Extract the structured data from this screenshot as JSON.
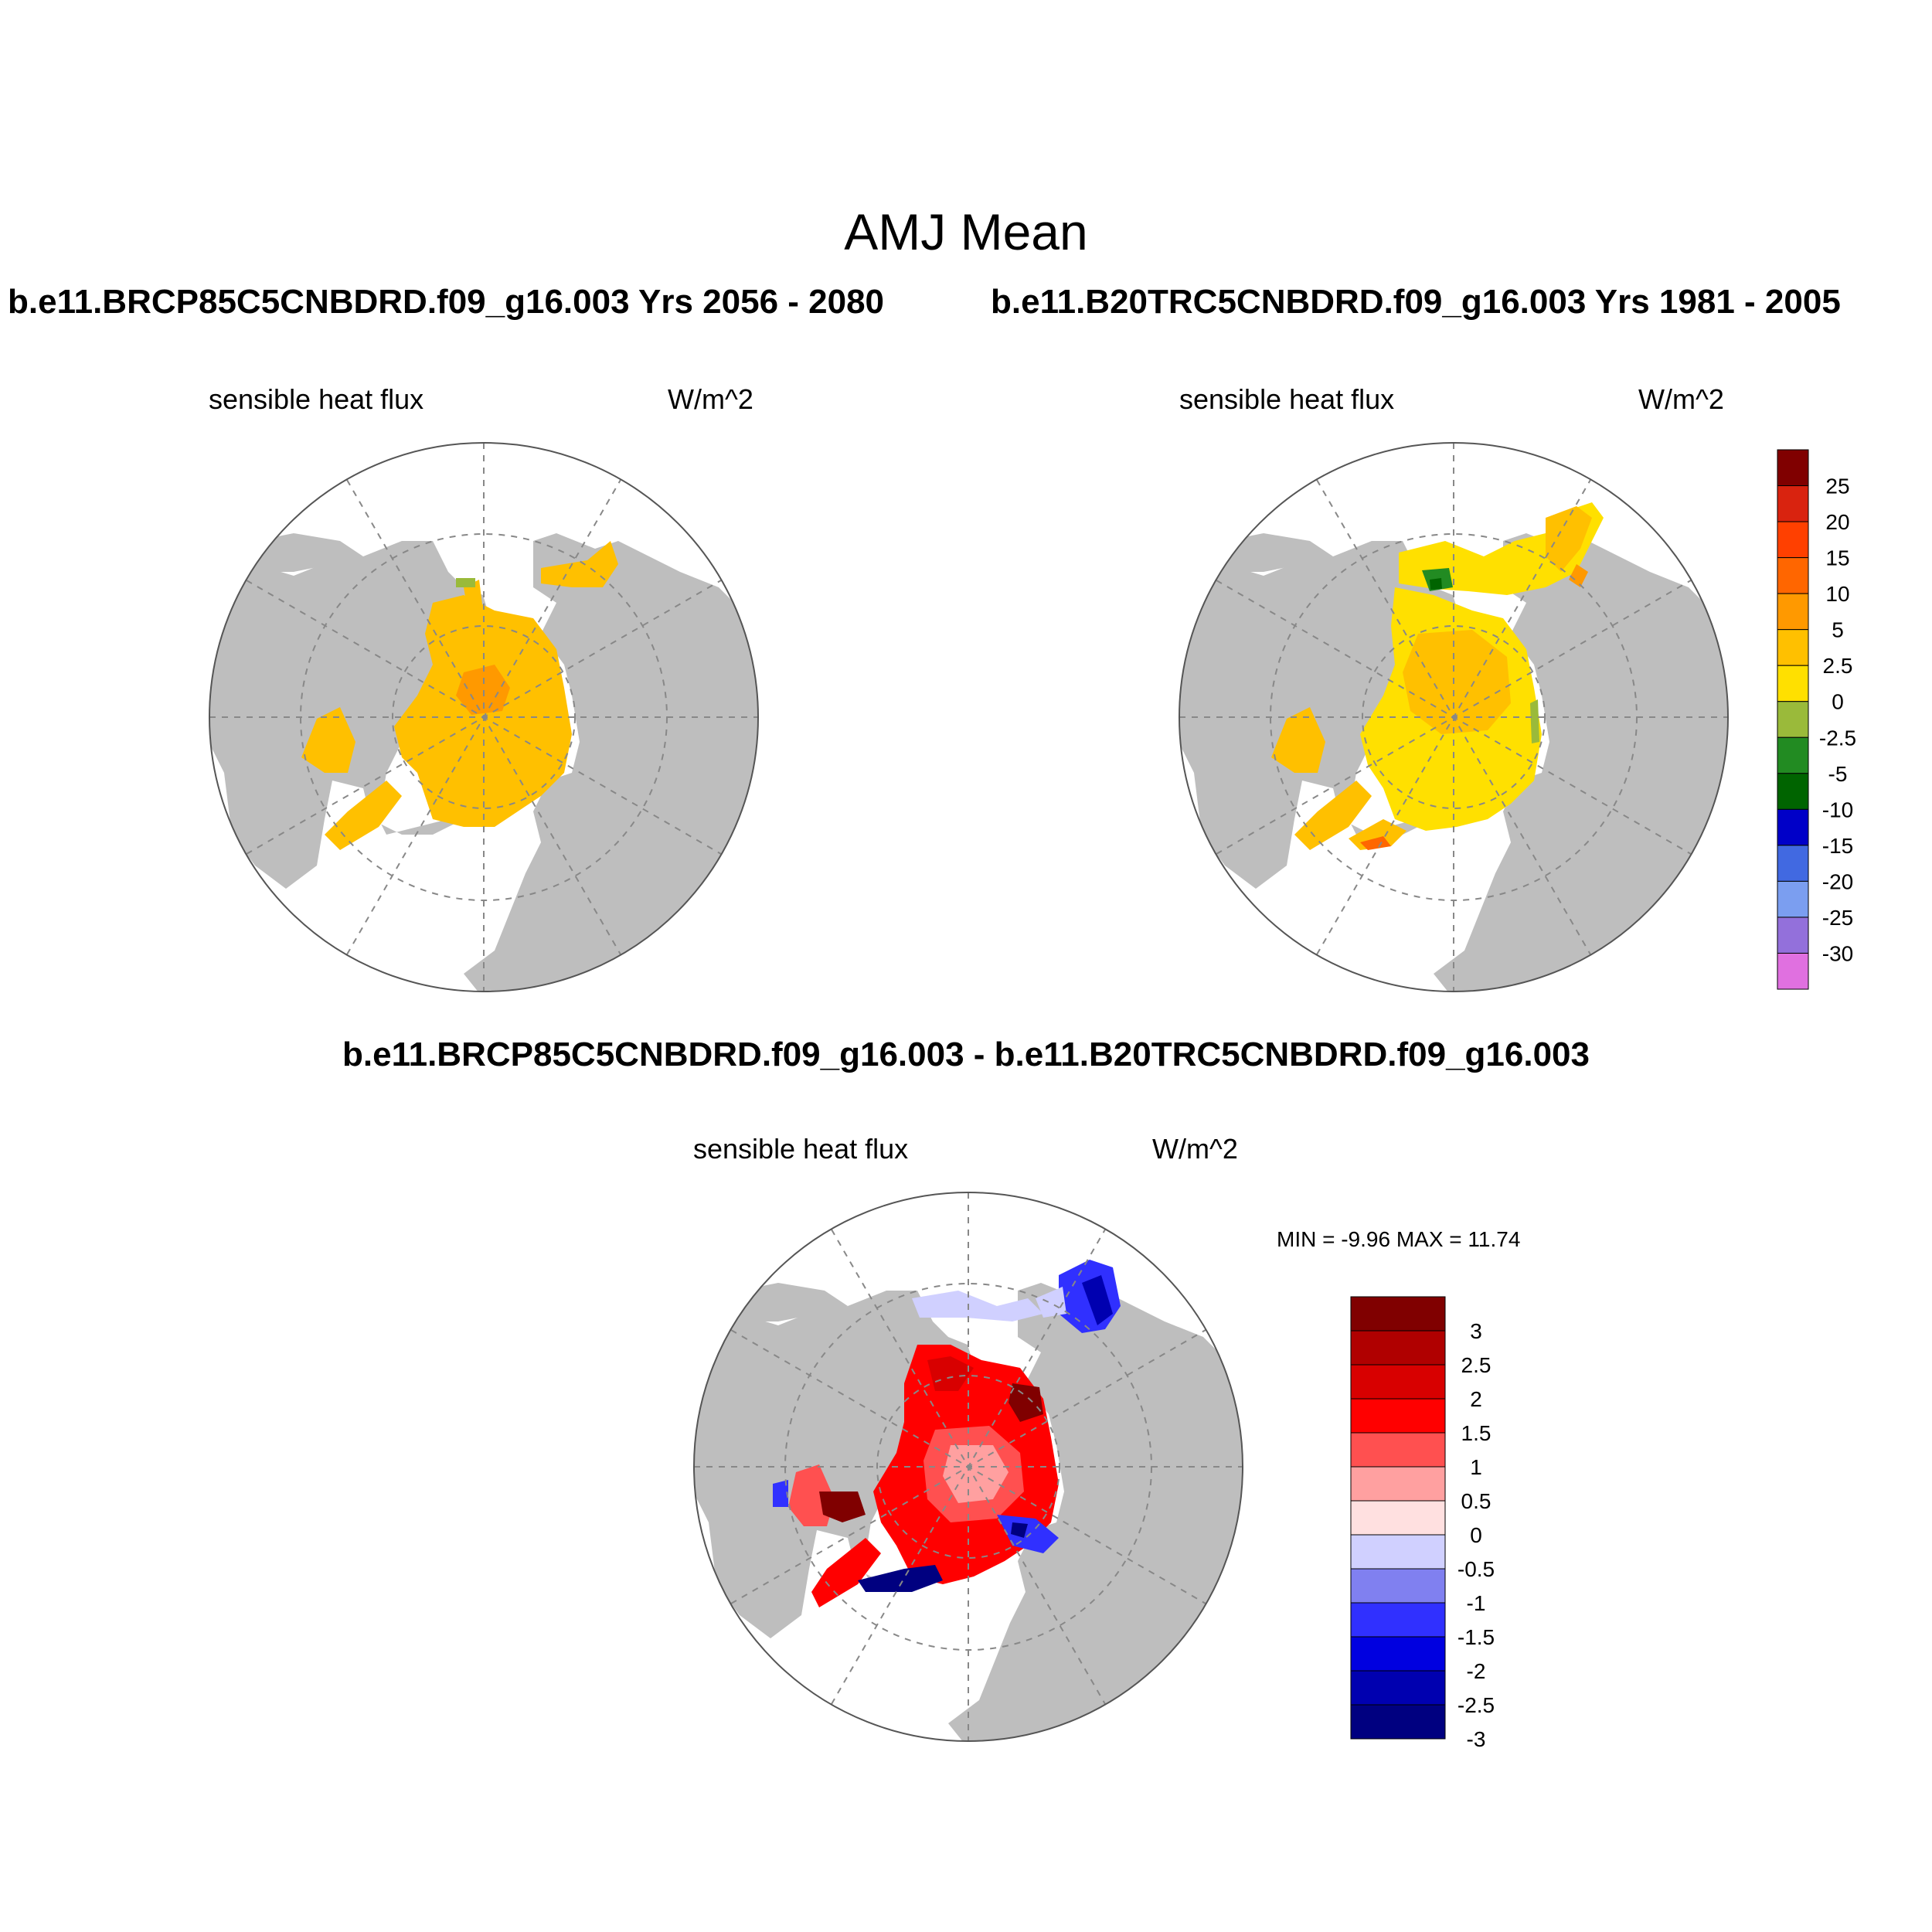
{
  "figure": {
    "title": "AMJ Mean",
    "panel_left_title": "b.e11.BRCP85C5CNBDRD.f09_g16.003  Yrs 2056 - 2080",
    "panel_right_title": "b.e11.B20TRC5CNBDRD.f09_g16.003  Yrs 1981 - 2005",
    "diff_title": "b.e11.BRCP85C5CNBDRD.f09_g16.003 - b.e11.B20TRC5CNBDRD.f09_g16.003",
    "variable": "sensible heat flux",
    "units": "W/m^2",
    "diff_min_max": "MIN =  -9.96 MAX =  11.74"
  },
  "map": {
    "projection": "north polar stereographic",
    "land_color": "#bebebe",
    "ocean_color": "#ffffff",
    "gridlines": "dashed"
  },
  "colorbar_main": {
    "labels": [
      "25",
      "20",
      "15",
      "10",
      "5",
      "2.5",
      "0",
      "-2.5",
      "-5",
      "-10",
      "-15",
      "-20",
      "-25",
      "-30"
    ],
    "colors": [
      "#800000",
      "#d9230f",
      "#ff4000",
      "#ff6600",
      "#ff9900",
      "#ffc000",
      "#ffe000",
      "#9aba3a",
      "#228b22",
      "#006400",
      "#0000c8",
      "#4169e1",
      "#7b9ef0",
      "#9370db",
      "#e070e0"
    ]
  },
  "colorbar_diff": {
    "labels": [
      "3",
      "2.5",
      "2",
      "1.5",
      "1",
      "0.5",
      "0",
      "-0.5",
      "-1",
      "-1.5",
      "-2",
      "-2.5",
      "-3"
    ],
    "colors": [
      "#800000",
      "#b00000",
      "#d80000",
      "#ff0000",
      "#ff5050",
      "#ffa0a0",
      "#ffe0e0",
      "#d0d0ff",
      "#8080f0",
      "#3030ff",
      "#0000e0",
      "#0000b0",
      "#000080"
    ]
  }
}
